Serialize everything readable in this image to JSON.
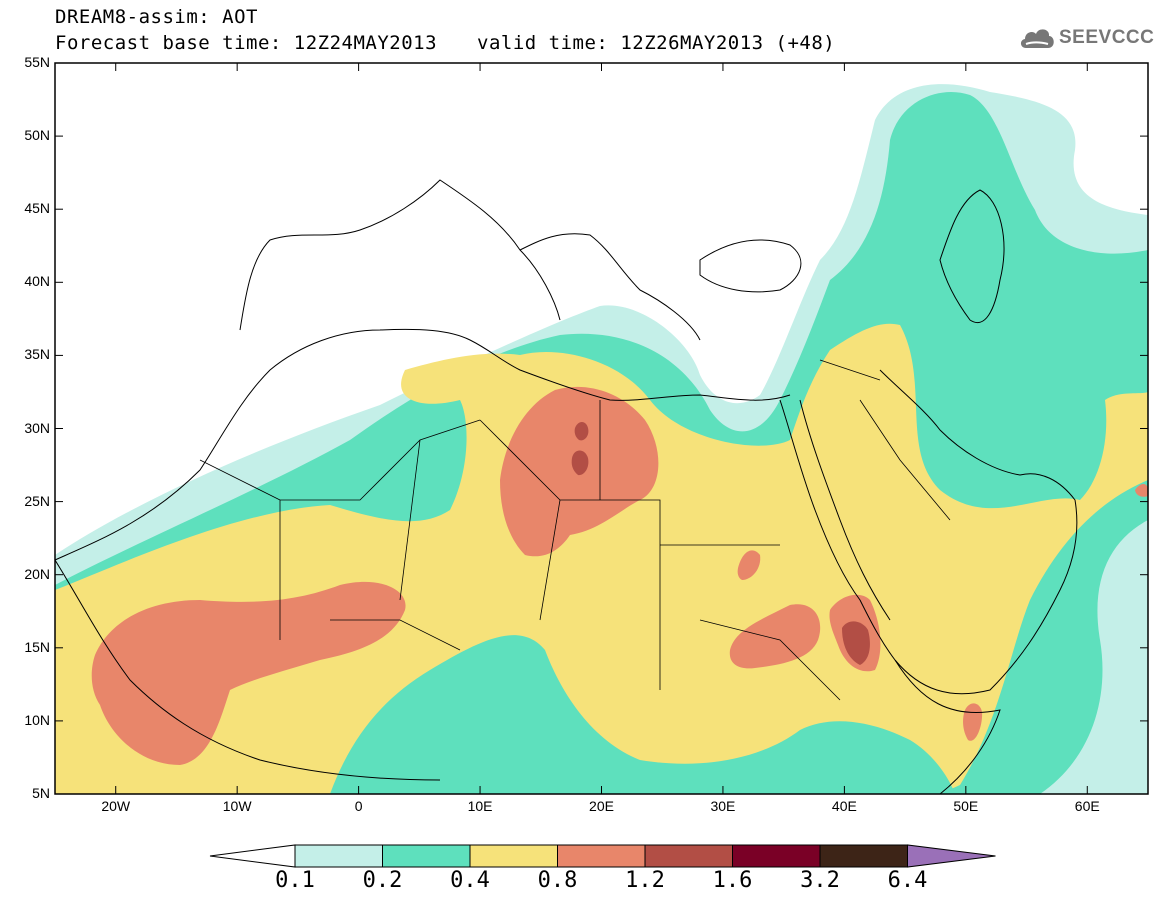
{
  "header": {
    "line1": "DREAM8-assim: AOT",
    "base_time_label": "Forecast base time: 12Z24MAY2013",
    "valid_time_label": "valid time: 12Z26MAY2013 (+48)"
  },
  "logo": {
    "text": "SEEVCCC",
    "icon": "cloud-icon"
  },
  "map": {
    "lat_labels": [
      "55N",
      "50N",
      "45N",
      "40N",
      "35N",
      "30N",
      "25N",
      "20N",
      "15N",
      "10N",
      "5N"
    ],
    "lon_labels": [
      "20W",
      "10W",
      "0",
      "10E",
      "20E",
      "30E",
      "40E",
      "50E",
      "60E"
    ],
    "lat_range": [
      5,
      55
    ],
    "lon_range": [
      -25,
      65
    ]
  },
  "colorbar": {
    "labels": [
      "0.1",
      "0.2",
      "0.4",
      "0.8",
      "1.2",
      "1.6",
      "3.2",
      "6.4"
    ],
    "colors": [
      "#c4efe8",
      "#5ee0bd",
      "#f6e27a",
      "#e8866a",
      "#b24e45",
      "#7a0026",
      "#3d2417",
      "#9a70b8"
    ],
    "under_color": "#ffffff"
  }
}
